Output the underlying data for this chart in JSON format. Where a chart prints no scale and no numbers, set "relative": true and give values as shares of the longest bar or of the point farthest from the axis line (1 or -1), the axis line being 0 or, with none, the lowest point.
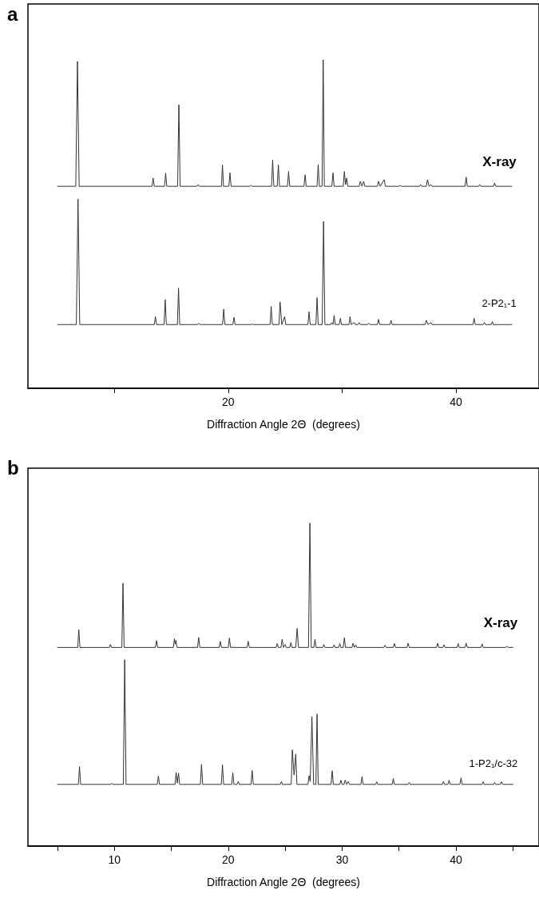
{
  "chart_data": [
    {
      "type": "line",
      "title": "a",
      "xlabel": "Diffraction Angle 2Θ  (degrees)",
      "relative": true,
      "xlim": [
        2.4,
        47.3
      ],
      "xticks": [
        {
          "value": 10,
          "label": null
        },
        20,
        {
          "value": 30,
          "label": null
        },
        40
      ],
      "grid": false,
      "legend": false,
      "marker": "none",
      "line_style": "solid",
      "series": [
        {
          "name": "X-ray",
          "color": "#333333",
          "x": [
            5.0,
            6.6,
            6.75,
            6.9,
            13.3,
            13.4,
            13.5,
            14.4,
            14.5,
            14.6,
            15.55,
            15.66,
            15.77,
            17.25,
            17.35,
            17.45,
            19.4,
            19.49,
            19.58,
            20.05,
            20.15,
            20.25,
            21.9,
            22.0,
            22.1,
            23.8,
            23.9,
            24.0,
            24.3,
            24.4,
            24.5,
            25.2,
            25.3,
            25.4,
            26.65,
            26.75,
            26.85,
            27.8,
            27.9,
            28.0,
            28.24,
            28.34,
            28.44,
            29.1,
            29.2,
            29.3,
            30.1,
            30.2,
            30.3,
            30.4,
            30.5,
            31.5,
            31.6,
            31.75,
            31.9,
            32.0,
            33.1,
            33.2,
            33.35,
            33.7,
            33.8,
            35.0,
            35.1,
            35.2,
            36.8,
            36.9,
            37.0,
            37.4,
            37.5,
            37.65,
            37.8,
            37.9,
            40.8,
            40.9,
            41.0,
            42.0,
            42.1,
            42.2,
            43.3,
            43.4,
            43.5,
            44.9
          ],
          "values": [
            0.615,
            0.615,
            0.995,
            0.615,
            0.615,
            0.64,
            0.615,
            0.615,
            0.655,
            0.615,
            0.615,
            0.863,
            0.615,
            0.615,
            0.62,
            0.615,
            0.615,
            0.68,
            0.615,
            0.615,
            0.656,
            0.615,
            0.615,
            0.618,
            0.615,
            0.615,
            0.695,
            0.615,
            0.615,
            0.68,
            0.615,
            0.615,
            0.66,
            0.615,
            0.615,
            0.65,
            0.615,
            0.615,
            0.681,
            0.615,
            0.615,
            1.0,
            0.615,
            0.615,
            0.656,
            0.615,
            0.615,
            0.66,
            0.62,
            0.64,
            0.615,
            0.615,
            0.63,
            0.615,
            0.63,
            0.615,
            0.615,
            0.63,
            0.615,
            0.635,
            0.615,
            0.615,
            0.618,
            0.615,
            0.615,
            0.62,
            0.615,
            0.615,
            0.635,
            0.615,
            0.62,
            0.615,
            0.615,
            0.643,
            0.615,
            0.615,
            0.62,
            0.615,
            0.615,
            0.625,
            0.615,
            0.615
          ]
        },
        {
          "name": "2-P2₁-1",
          "color": "#333333",
          "x": [
            5.0,
            6.65,
            6.8,
            6.95,
            13.5,
            13.6,
            13.7,
            14.36,
            14.46,
            14.56,
            15.53,
            15.63,
            15.73,
            17.3,
            17.4,
            17.5,
            19.5,
            19.6,
            19.7,
            20.4,
            20.5,
            20.6,
            22.0,
            22.1,
            22.2,
            23.67,
            23.77,
            23.87,
            24.45,
            24.55,
            24.7,
            24.95,
            25.05,
            27.0,
            27.1,
            27.2,
            27.7,
            27.8,
            27.9,
            28.25,
            28.37,
            28.49,
            29.0,
            29.1,
            29.2,
            29.3,
            29.4,
            29.75,
            29.85,
            29.95,
            30.6,
            30.7,
            30.8,
            31.05,
            31.15,
            31.4,
            31.5,
            31.6,
            32.25,
            32.35,
            32.45,
            33.1,
            33.2,
            33.3,
            34.2,
            34.3,
            34.4,
            37.3,
            37.4,
            37.55,
            37.8,
            37.9,
            41.5,
            41.6,
            41.7,
            42.4,
            42.5,
            42.6,
            43.1,
            43.2,
            43.3,
            44.9
          ],
          "values": [
            0.194,
            0.194,
            0.576,
            0.194,
            0.194,
            0.218,
            0.194,
            0.194,
            0.27,
            0.194,
            0.194,
            0.305,
            0.194,
            0.194,
            0.198,
            0.194,
            0.194,
            0.241,
            0.194,
            0.194,
            0.216,
            0.194,
            0.194,
            0.196,
            0.194,
            0.194,
            0.249,
            0.194,
            0.194,
            0.263,
            0.194,
            0.218,
            0.194,
            0.194,
            0.233,
            0.194,
            0.194,
            0.276,
            0.194,
            0.194,
            0.508,
            0.194,
            0.194,
            0.2,
            0.194,
            0.222,
            0.194,
            0.194,
            0.213,
            0.194,
            0.194,
            0.218,
            0.194,
            0.2,
            0.194,
            0.194,
            0.2,
            0.194,
            0.194,
            0.198,
            0.194,
            0.194,
            0.21,
            0.194,
            0.194,
            0.207,
            0.194,
            0.194,
            0.207,
            0.194,
            0.2,
            0.194,
            0.194,
            0.213,
            0.194,
            0.194,
            0.2,
            0.194,
            0.194,
            0.203,
            0.194,
            0.194
          ]
        }
      ]
    },
    {
      "type": "line",
      "title": "b",
      "xlabel": "Diffraction Angle 2Θ  (degrees)",
      "relative": true,
      "xlim": [
        2.4,
        47.3
      ],
      "xticks": [
        {
          "value": 5,
          "label": null
        },
        10,
        {
          "value": 15,
          "label": null
        },
        20,
        {
          "value": 25,
          "label": null
        },
        30,
        {
          "value": 35,
          "label": null
        },
        40,
        {
          "value": 45,
          "label": null
        }
      ],
      "grid": false,
      "legend": false,
      "marker": "none",
      "line_style": "solid",
      "series": [
        {
          "name": "X-ray",
          "color": "#333333",
          "x": [
            5.0,
            6.77,
            6.87,
            6.97,
            9.54,
            9.64,
            9.74,
            10.65,
            10.75,
            10.85,
            13.6,
            13.7,
            13.8,
            15.17,
            15.27,
            15.34,
            15.4,
            15.5,
            17.3,
            17.4,
            17.5,
            19.2,
            19.3,
            19.4,
            20.0,
            20.1,
            20.2,
            21.65,
            21.75,
            21.85,
            24.2,
            24.3,
            24.4,
            24.63,
            24.73,
            24.85,
            25.0,
            25.1,
            25.4,
            25.5,
            25.6,
            25.93,
            26.05,
            26.17,
            27.05,
            27.17,
            27.29,
            27.52,
            27.62,
            27.72,
            28.3,
            28.4,
            28.5,
            29.2,
            29.3,
            29.4,
            29.7,
            29.8,
            29.9,
            30.1,
            30.2,
            30.3,
            30.86,
            30.96,
            31.08,
            31.2,
            31.3,
            33.67,
            33.77,
            33.87,
            34.5,
            34.6,
            34.7,
            35.7,
            35.8,
            35.9,
            38.3,
            38.4,
            38.5,
            38.85,
            38.95,
            39.05,
            40.1,
            40.2,
            40.3,
            40.8,
            40.9,
            41.0,
            42.2,
            42.3,
            42.4,
            44.4,
            44.5,
            44.6,
            45.0
          ],
          "values": [
            0.615,
            0.615,
            0.67,
            0.615,
            0.615,
            0.624,
            0.615,
            0.615,
            0.814,
            0.615,
            0.615,
            0.636,
            0.615,
            0.615,
            0.642,
            0.625,
            0.637,
            0.615,
            0.615,
            0.646,
            0.615,
            0.615,
            0.634,
            0.615,
            0.615,
            0.644,
            0.615,
            0.615,
            0.634,
            0.615,
            0.615,
            0.627,
            0.615,
            0.615,
            0.64,
            0.615,
            0.624,
            0.615,
            0.615,
            0.63,
            0.615,
            0.615,
            0.674,
            0.615,
            0.615,
            1.0,
            0.615,
            0.615,
            0.64,
            0.615,
            0.615,
            0.624,
            0.615,
            0.615,
            0.623,
            0.615,
            0.615,
            0.627,
            0.615,
            0.615,
            0.645,
            0.615,
            0.615,
            0.628,
            0.615,
            0.623,
            0.615,
            0.615,
            0.622,
            0.615,
            0.615,
            0.627,
            0.615,
            0.615,
            0.628,
            0.615,
            0.615,
            0.628,
            0.615,
            0.615,
            0.623,
            0.615,
            0.615,
            0.627,
            0.615,
            0.615,
            0.628,
            0.615,
            0.615,
            0.626,
            0.615,
            0.615,
            0.619,
            0.615,
            0.615
          ]
        },
        {
          "name": "1-P2₁/c-32",
          "color": "#333333",
          "x": [
            5.0,
            6.83,
            6.93,
            7.03,
            9.66,
            9.76,
            9.86,
            10.78,
            10.9,
            11.02,
            13.76,
            13.86,
            13.96,
            15.32,
            15.42,
            15.52,
            15.63,
            15.73,
            17.55,
            17.65,
            17.75,
            19.39,
            19.49,
            19.59,
            20.3,
            20.4,
            20.5,
            20.77,
            20.87,
            20.97,
            22.0,
            22.1,
            22.2,
            24.57,
            24.67,
            24.77,
            25.53,
            25.63,
            25.78,
            25.93,
            26.03,
            27.0,
            27.1,
            27.2,
            27.35,
            27.5,
            27.7,
            27.8,
            27.9,
            29.03,
            29.13,
            29.23,
            29.8,
            29.9,
            30.0,
            30.17,
            30.27,
            30.4,
            30.54,
            30.64,
            31.65,
            31.75,
            31.85,
            32.94,
            33.04,
            33.14,
            34.4,
            34.5,
            34.6,
            35.8,
            35.9,
            36.0,
            38.8,
            38.9,
            39.0,
            39.3,
            39.4,
            39.5,
            40.35,
            40.45,
            40.55,
            42.3,
            42.4,
            42.5,
            43.3,
            43.4,
            43.5,
            43.9,
            44.0,
            44.1,
            45.0
          ],
          "values": [
            0.191,
            0.191,
            0.246,
            0.191,
            0.191,
            0.194,
            0.191,
            0.191,
            0.577,
            0.191,
            0.191,
            0.217,
            0.191,
            0.191,
            0.228,
            0.195,
            0.226,
            0.191,
            0.191,
            0.253,
            0.191,
            0.191,
            0.252,
            0.191,
            0.191,
            0.227,
            0.191,
            0.191,
            0.2,
            0.191,
            0.191,
            0.234,
            0.191,
            0.191,
            0.2,
            0.191,
            0.191,
            0.298,
            0.22,
            0.285,
            0.191,
            0.191,
            0.218,
            0.2,
            0.401,
            0.191,
            0.191,
            0.409,
            0.191,
            0.191,
            0.233,
            0.191,
            0.191,
            0.204,
            0.191,
            0.191,
            0.204,
            0.191,
            0.2,
            0.191,
            0.191,
            0.215,
            0.191,
            0.191,
            0.199,
            0.191,
            0.191,
            0.209,
            0.191,
            0.191,
            0.197,
            0.191,
            0.191,
            0.2,
            0.191,
            0.191,
            0.204,
            0.191,
            0.191,
            0.211,
            0.191,
            0.191,
            0.199,
            0.191,
            0.191,
            0.197,
            0.191,
            0.191,
            0.199,
            0.191,
            0.191
          ]
        }
      ]
    }
  ]
}
